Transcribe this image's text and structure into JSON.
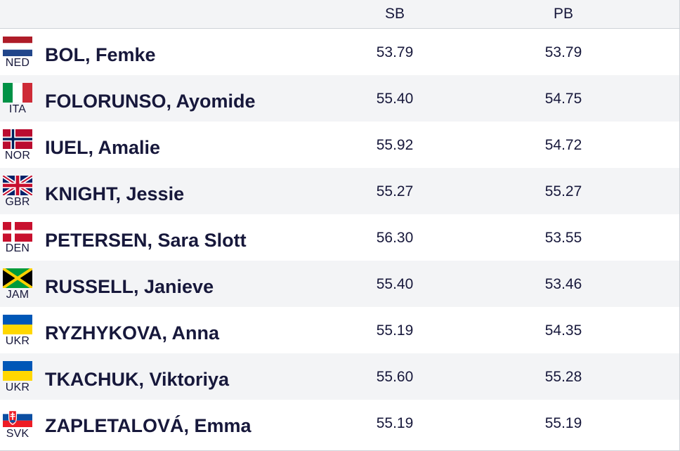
{
  "header": {
    "sb_label": "SB",
    "pb_label": "PB"
  },
  "rows": [
    {
      "code": "NED",
      "name": "BOL, Femke",
      "sb": "53.79",
      "pb": "53.79",
      "flag": "netherlands-flag-icon"
    },
    {
      "code": "ITA",
      "name": "FOLORUNSO, Ayomide",
      "sb": "55.40",
      "pb": "54.75",
      "flag": "italy-flag-icon"
    },
    {
      "code": "NOR",
      "name": "IUEL, Amalie",
      "sb": "55.92",
      "pb": "54.72",
      "flag": "norway-flag-icon"
    },
    {
      "code": "GBR",
      "name": "KNIGHT, Jessie",
      "sb": "55.27",
      "pb": "55.27",
      "flag": "great-britain-flag-icon"
    },
    {
      "code": "DEN",
      "name": "PETERSEN, Sara Slott",
      "sb": "56.30",
      "pb": "53.55",
      "flag": "denmark-flag-icon"
    },
    {
      "code": "JAM",
      "name": "RUSSELL, Janieve",
      "sb": "55.40",
      "pb": "53.46",
      "flag": "jamaica-flag-icon"
    },
    {
      "code": "UKR",
      "name": "RYZHYKOVA, Anna",
      "sb": "55.19",
      "pb": "54.35",
      "flag": "ukraine-flag-icon"
    },
    {
      "code": "UKR",
      "name": "TKACHUK, Viktoriya",
      "sb": "55.60",
      "pb": "55.28",
      "flag": "ukraine-flag-icon"
    },
    {
      "code": "SVK",
      "name": "ZAPLETALOVÁ, Emma",
      "sb": "55.19",
      "pb": "55.19",
      "flag": "slovakia-flag-icon"
    }
  ]
}
